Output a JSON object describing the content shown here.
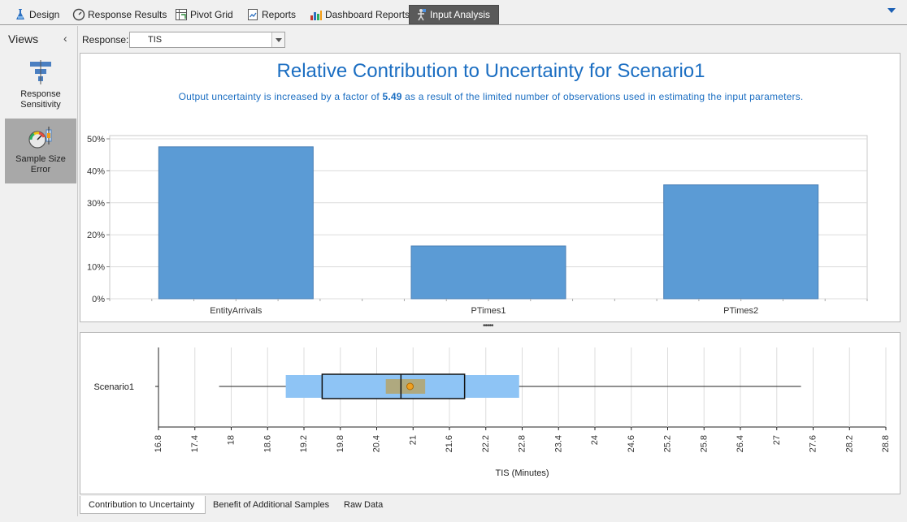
{
  "tabs": [
    {
      "label": "Design",
      "icon": "flask-icon"
    },
    {
      "label": "Response Results",
      "icon": "gauge-icon"
    },
    {
      "label": "Pivot Grid",
      "icon": "pivot-grid-icon"
    },
    {
      "label": "Reports",
      "icon": "report-icon"
    },
    {
      "label": "Dashboard Reports",
      "icon": "dashboard-icon"
    },
    {
      "label": "Input Analysis",
      "icon": "input-analysis-icon",
      "active": true
    }
  ],
  "views": {
    "title": "Views",
    "items": [
      {
        "label": "Response Sensitivity",
        "icon": "response-sensitivity-icon"
      },
      {
        "label": "Sample Size Error",
        "icon": "sample-size-error-icon",
        "selected": true
      }
    ]
  },
  "response": {
    "label": "Response:",
    "value": "TIS"
  },
  "chart_data": [
    {
      "type": "bar",
      "title": "Relative Contribution to Uncertainty for Scenario1",
      "subtitle_prefix": "Output uncertainty is increased by a factor of",
      "factor": "5.49",
      "subtitle_suffix": "as a result of the limited number of observations used in estimating the input parameters.",
      "categories": [
        "EntityArrivals",
        "PTimes1",
        "PTimes2"
      ],
      "values": [
        47.5,
        16.5,
        35.6
      ],
      "ylim": [
        0,
        50
      ],
      "yticks": [
        "0%",
        "10%",
        "20%",
        "30%",
        "40%",
        "50%"
      ],
      "color": "#5b9bd5",
      "grid": true
    },
    {
      "type": "box",
      "category": "Scenario1",
      "xlabel": "TIS (Minutes)",
      "xlim": [
        16.8,
        28.8
      ],
      "xticks": [
        "16.8",
        "17.4",
        "18",
        "18.6",
        "19.2",
        "19.8",
        "20.4",
        "21",
        "21.6",
        "22.2",
        "22.8",
        "23.4",
        "24",
        "24.6",
        "25.2",
        "25.8",
        "26.4",
        "27",
        "27.6",
        "28.2",
        "28.8"
      ],
      "whisker_low": 17.8,
      "whisker_high": 27.4,
      "ci_low": 18.9,
      "ci_high": 22.75,
      "q1": 19.5,
      "q3": 21.85,
      "median": 20.8,
      "median_ci_low": 20.55,
      "median_ci_high": 21.2,
      "mean": 20.95,
      "grid": true
    }
  ],
  "bottom_tabs": [
    {
      "label": "Contribution to Uncertainty",
      "active": true
    },
    {
      "label": "Benefit of Additional Samples"
    },
    {
      "label": "Raw Data"
    }
  ]
}
